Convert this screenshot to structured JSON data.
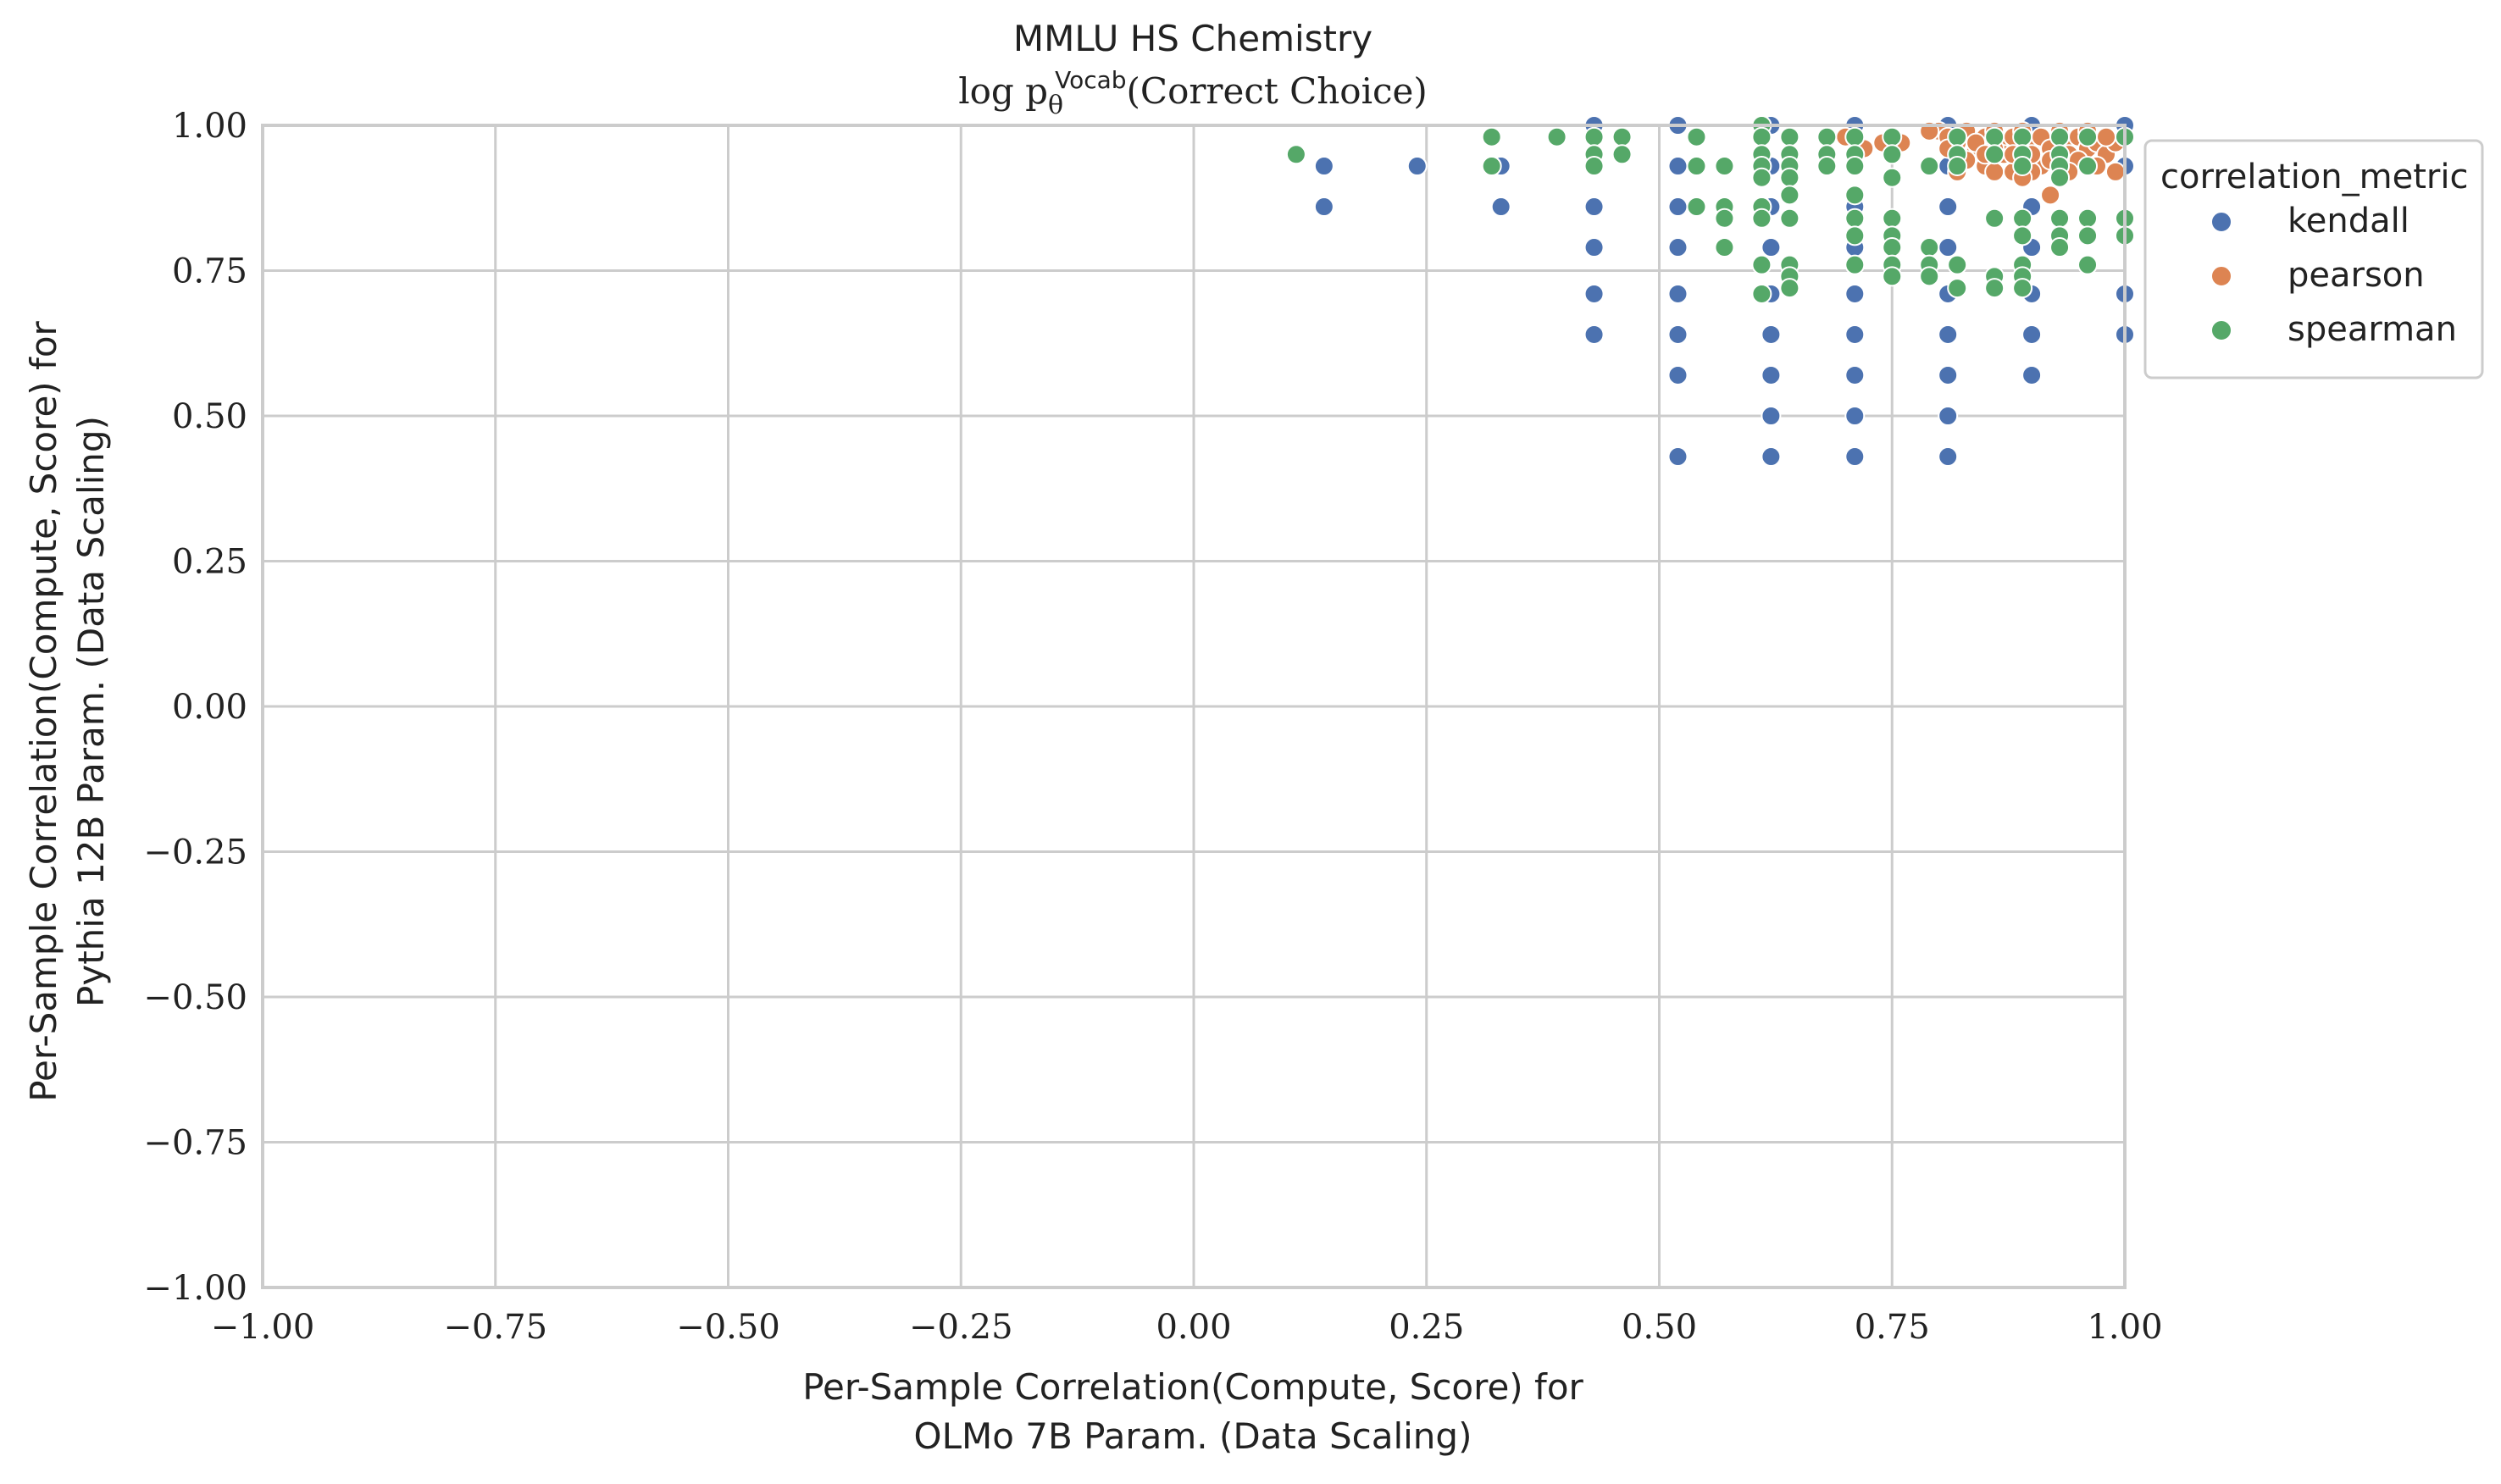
{
  "chart_data": {
    "type": "scatter",
    "title": "MMLU HS Chemistry",
    "subtitle": {
      "prefix": "log p",
      "sub": "θ",
      "sup": "Vocab",
      "suffix": "(Correct Choice)"
    },
    "xlabel": [
      "Per-Sample Correlation(Compute, Score) for",
      "OLMo 7B Param. (Data Scaling)"
    ],
    "ylabel": [
      "Per-Sample Correlation(Compute, Score) for",
      "Pythia 12B Param. (Data Scaling)"
    ],
    "xlim": [
      -1,
      1
    ],
    "ylim": [
      -1,
      1
    ],
    "xticks": [
      "−1.00",
      "−0.75",
      "−0.50",
      "−0.25",
      "0.00",
      "0.25",
      "0.50",
      "0.75",
      "1.00"
    ],
    "yticks": [
      "−1.00",
      "−0.75",
      "−0.50",
      "−0.25",
      "0.00",
      "0.25",
      "0.50",
      "0.75",
      "1.00"
    ],
    "grid": true,
    "legend": {
      "title": "correlation_metric",
      "placement": "outside-right"
    },
    "series": [
      {
        "name": "kendall",
        "color": "#4c72b0",
        "points": [
          [
            0.14,
            0.93
          ],
          [
            0.14,
            0.86
          ],
          [
            0.24,
            0.93
          ],
          [
            0.33,
            0.93
          ],
          [
            0.33,
            0.86
          ],
          [
            0.43,
            1.0
          ],
          [
            0.43,
            0.93
          ],
          [
            0.43,
            0.86
          ],
          [
            0.43,
            0.79
          ],
          [
            0.43,
            0.71
          ],
          [
            0.43,
            0.64
          ],
          [
            0.52,
            1.0
          ],
          [
            0.52,
            0.93
          ],
          [
            0.52,
            0.86
          ],
          [
            0.52,
            0.79
          ],
          [
            0.52,
            0.71
          ],
          [
            0.52,
            0.64
          ],
          [
            0.52,
            0.57
          ],
          [
            0.52,
            0.43
          ],
          [
            0.62,
            1.0
          ],
          [
            0.62,
            0.93
          ],
          [
            0.62,
            0.86
          ],
          [
            0.62,
            0.79
          ],
          [
            0.62,
            0.71
          ],
          [
            0.62,
            0.64
          ],
          [
            0.62,
            0.57
          ],
          [
            0.62,
            0.5
          ],
          [
            0.62,
            0.43
          ],
          [
            0.71,
            1.0
          ],
          [
            0.71,
            0.93
          ],
          [
            0.71,
            0.86
          ],
          [
            0.71,
            0.79
          ],
          [
            0.71,
            0.71
          ],
          [
            0.71,
            0.64
          ],
          [
            0.71,
            0.57
          ],
          [
            0.71,
            0.5
          ],
          [
            0.71,
            0.43
          ],
          [
            0.81,
            1.0
          ],
          [
            0.81,
            0.93
          ],
          [
            0.81,
            0.86
          ],
          [
            0.81,
            0.79
          ],
          [
            0.81,
            0.71
          ],
          [
            0.81,
            0.64
          ],
          [
            0.81,
            0.57
          ],
          [
            0.81,
            0.5
          ],
          [
            0.81,
            0.43
          ],
          [
            0.9,
            1.0
          ],
          [
            0.9,
            0.93
          ],
          [
            0.9,
            0.86
          ],
          [
            0.9,
            0.79
          ],
          [
            0.9,
            0.71
          ],
          [
            0.9,
            0.64
          ],
          [
            0.9,
            0.57
          ],
          [
            1.0,
            1.0
          ],
          [
            1.0,
            0.93
          ],
          [
            1.0,
            0.71
          ],
          [
            1.0,
            0.64
          ]
        ]
      },
      {
        "name": "pearson",
        "color": "#dd8452",
        "points": [
          [
            0.8,
            0.99
          ],
          [
            0.81,
            0.98
          ],
          [
            0.82,
            0.97
          ],
          [
            0.83,
            0.99
          ],
          [
            0.84,
            0.96
          ],
          [
            0.85,
            0.98
          ],
          [
            0.86,
            0.99
          ],
          [
            0.87,
            0.97
          ],
          [
            0.88,
            0.98
          ],
          [
            0.89,
            0.99
          ],
          [
            0.9,
            0.97
          ],
          [
            0.91,
            0.98
          ],
          [
            0.92,
            0.96
          ],
          [
            0.93,
            0.99
          ],
          [
            0.94,
            0.97
          ],
          [
            0.95,
            0.98
          ],
          [
            0.96,
            0.96
          ],
          [
            0.97,
            0.97
          ],
          [
            0.98,
            0.95
          ],
          [
            0.99,
            0.97
          ],
          [
            0.83,
            0.94
          ],
          [
            0.85,
            0.93
          ],
          [
            0.87,
            0.95
          ],
          [
            0.89,
            0.94
          ],
          [
            0.91,
            0.93
          ],
          [
            0.92,
            0.94
          ],
          [
            0.94,
            0.95
          ],
          [
            0.86,
            0.92
          ],
          [
            0.88,
            0.92
          ],
          [
            0.9,
            0.92
          ],
          [
            0.82,
            0.92
          ],
          [
            0.93,
            0.93
          ],
          [
            0.95,
            0.94
          ],
          [
            0.97,
            0.93
          ],
          [
            0.99,
            0.92
          ],
          [
            0.92,
            0.88
          ],
          [
            0.84,
            0.97
          ],
          [
            0.86,
            0.96
          ],
          [
            0.88,
            0.95
          ],
          [
            0.9,
            0.95
          ],
          [
            0.96,
            0.99
          ],
          [
            0.98,
            0.98
          ],
          [
            0.79,
            0.99
          ],
          [
            0.81,
            0.96
          ],
          [
            0.85,
            0.95
          ],
          [
            0.89,
            0.91
          ],
          [
            0.94,
            0.92
          ],
          [
            0.76,
            0.97
          ],
          [
            0.7,
            0.98
          ],
          [
            0.72,
            0.96
          ],
          [
            0.74,
            0.97
          ]
        ]
      },
      {
        "name": "spearman",
        "color": "#55a868",
        "points": [
          [
            0.11,
            0.95
          ],
          [
            0.32,
            0.98
          ],
          [
            0.32,
            0.93
          ],
          [
            0.39,
            0.98
          ],
          [
            0.43,
            0.98
          ],
          [
            0.43,
            0.95
          ],
          [
            0.43,
            0.93
          ],
          [
            0.46,
            0.98
          ],
          [
            0.46,
            0.95
          ],
          [
            0.54,
            0.98
          ],
          [
            0.54,
            0.93
          ],
          [
            0.54,
            0.86
          ],
          [
            0.57,
            0.93
          ],
          [
            0.57,
            0.86
          ],
          [
            0.57,
            0.84
          ],
          [
            0.57,
            0.79
          ],
          [
            0.61,
            1.0
          ],
          [
            0.61,
            0.98
          ],
          [
            0.61,
            0.95
          ],
          [
            0.61,
            0.93
          ],
          [
            0.61,
            0.91
          ],
          [
            0.61,
            0.86
          ],
          [
            0.61,
            0.84
          ],
          [
            0.61,
            0.76
          ],
          [
            0.61,
            0.71
          ],
          [
            0.64,
            0.98
          ],
          [
            0.64,
            0.95
          ],
          [
            0.64,
            0.93
          ],
          [
            0.64,
            0.91
          ],
          [
            0.64,
            0.88
          ],
          [
            0.64,
            0.84
          ],
          [
            0.64,
            0.76
          ],
          [
            0.64,
            0.74
          ],
          [
            0.64,
            0.72
          ],
          [
            0.68,
            0.98
          ],
          [
            0.68,
            0.95
          ],
          [
            0.68,
            0.93
          ],
          [
            0.71,
            0.98
          ],
          [
            0.71,
            0.95
          ],
          [
            0.71,
            0.93
          ],
          [
            0.71,
            0.88
          ],
          [
            0.71,
            0.84
          ],
          [
            0.71,
            0.81
          ],
          [
            0.71,
            0.76
          ],
          [
            0.75,
            0.98
          ],
          [
            0.75,
            0.95
          ],
          [
            0.75,
            0.91
          ],
          [
            0.75,
            0.84
          ],
          [
            0.75,
            0.81
          ],
          [
            0.75,
            0.79
          ],
          [
            0.75,
            0.76
          ],
          [
            0.75,
            0.74
          ],
          [
            0.79,
            0.93
          ],
          [
            0.79,
            0.79
          ],
          [
            0.79,
            0.76
          ],
          [
            0.79,
            0.74
          ],
          [
            0.82,
            0.98
          ],
          [
            0.82,
            0.95
          ],
          [
            0.82,
            0.93
          ],
          [
            0.82,
            0.76
          ],
          [
            0.82,
            0.72
          ],
          [
            0.86,
            0.98
          ],
          [
            0.86,
            0.95
          ],
          [
            0.86,
            0.84
          ],
          [
            0.86,
            0.74
          ],
          [
            0.86,
            0.72
          ],
          [
            0.89,
            0.98
          ],
          [
            0.89,
            0.95
          ],
          [
            0.89,
            0.93
          ],
          [
            0.89,
            0.84
          ],
          [
            0.89,
            0.81
          ],
          [
            0.89,
            0.76
          ],
          [
            0.89,
            0.74
          ],
          [
            0.89,
            0.72
          ],
          [
            0.93,
            0.98
          ],
          [
            0.93,
            0.95
          ],
          [
            0.93,
            0.93
          ],
          [
            0.93,
            0.91
          ],
          [
            0.93,
            0.84
          ],
          [
            0.93,
            0.81
          ],
          [
            0.93,
            0.79
          ],
          [
            0.96,
            0.98
          ],
          [
            0.96,
            0.93
          ],
          [
            0.96,
            0.84
          ],
          [
            0.96,
            0.81
          ],
          [
            0.96,
            0.76
          ],
          [
            1.0,
            0.98
          ],
          [
            1.0,
            0.84
          ],
          [
            1.0,
            0.81
          ]
        ]
      }
    ]
  }
}
